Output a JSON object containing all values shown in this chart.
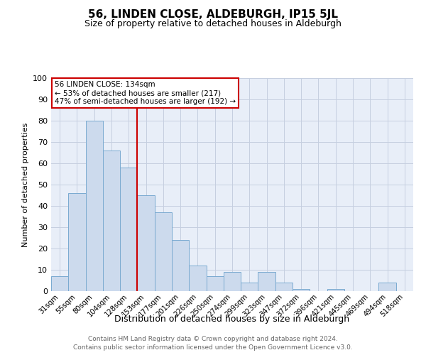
{
  "title": "56, LINDEN CLOSE, ALDEBURGH, IP15 5JL",
  "subtitle": "Size of property relative to detached houses in Aldeburgh",
  "xlabel": "Distribution of detached houses by size in Aldeburgh",
  "ylabel": "Number of detached properties",
  "bar_labels": [
    "31sqm",
    "55sqm",
    "80sqm",
    "104sqm",
    "128sqm",
    "153sqm",
    "177sqm",
    "201sqm",
    "226sqm",
    "250sqm",
    "274sqm",
    "299sqm",
    "323sqm",
    "347sqm",
    "372sqm",
    "396sqm",
    "421sqm",
    "445sqm",
    "469sqm",
    "494sqm",
    "518sqm"
  ],
  "bar_values": [
    7,
    46,
    80,
    66,
    58,
    45,
    37,
    24,
    12,
    7,
    9,
    4,
    9,
    4,
    1,
    0,
    1,
    0,
    0,
    4,
    0
  ],
  "bar_color": "#ccdaed",
  "bar_edge_color": "#7aaad0",
  "vline_color": "#cc0000",
  "vline_index": 5,
  "annotation_title": "56 LINDEN CLOSE: 134sqm",
  "annotation_line1": "← 53% of detached houses are smaller (217)",
  "annotation_line2": "47% of semi-detached houses are larger (192) →",
  "annotation_box_color": "#ffffff",
  "annotation_box_edge": "#cc0000",
  "ylim": [
    0,
    100
  ],
  "yticks": [
    0,
    10,
    20,
    30,
    40,
    50,
    60,
    70,
    80,
    90,
    100
  ],
  "grid_color": "#c5cfe0",
  "background_color": "#e8eef8",
  "footnote1": "Contains HM Land Registry data © Crown copyright and database right 2024.",
  "footnote2": "Contains public sector information licensed under the Open Government Licence v3.0."
}
